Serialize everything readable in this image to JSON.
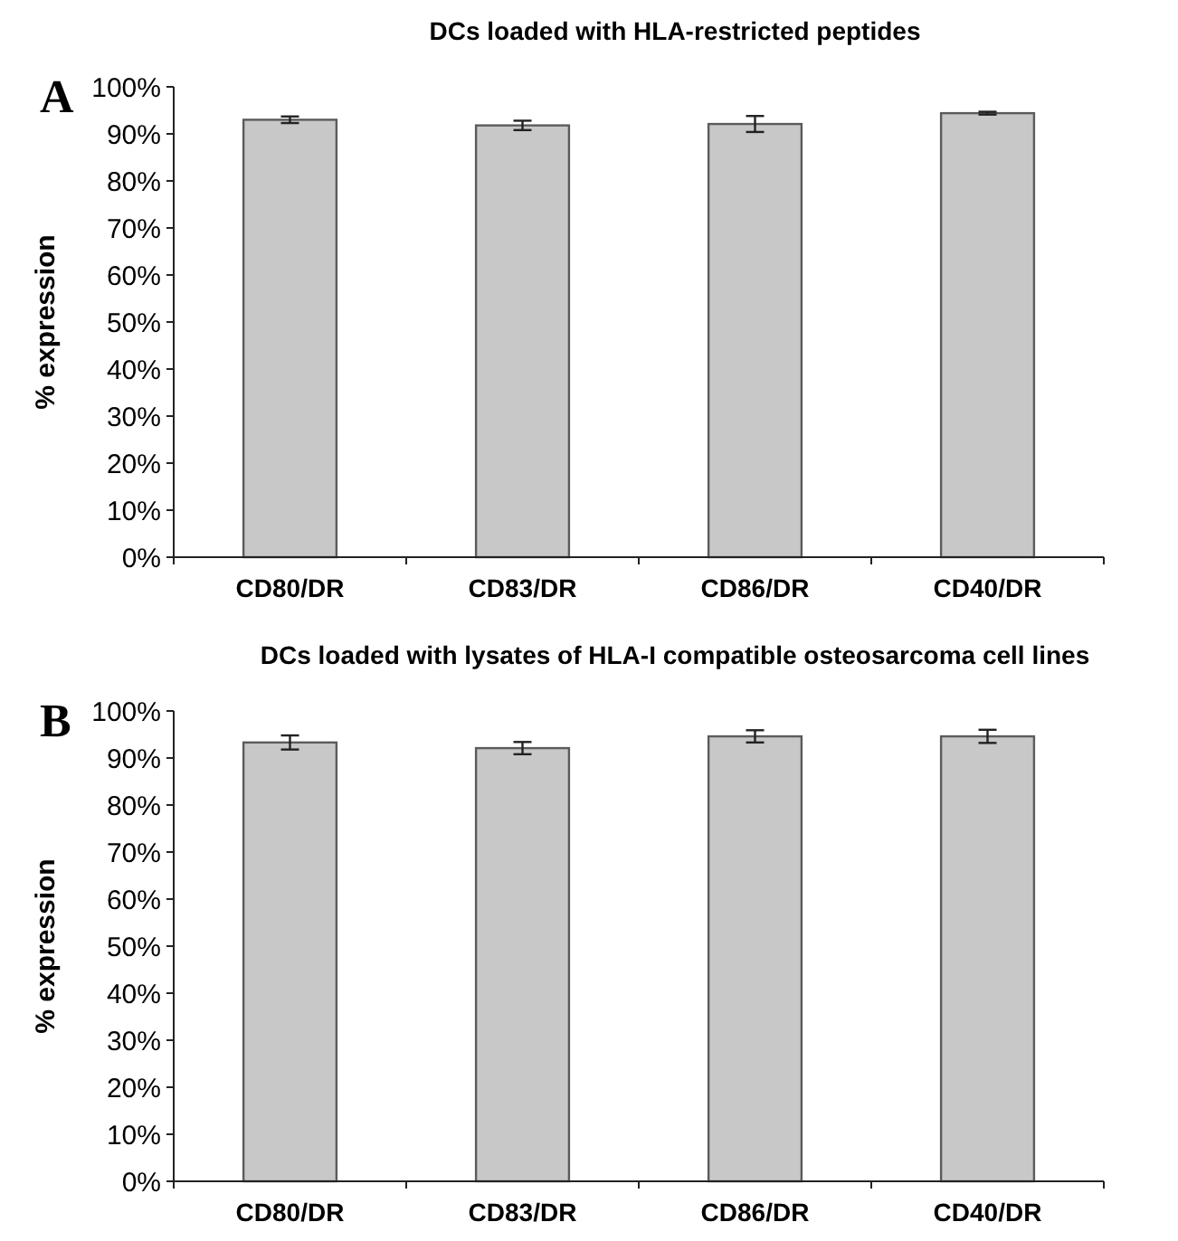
{
  "chart_data": [
    {
      "type": "bar",
      "title": "DCs loaded with HLA-restricted peptides",
      "ylabel": "% expression",
      "annotations": [
        "A"
      ],
      "categories": [
        "CD80/DR",
        "CD83/DR",
        "CD86/DR",
        "CD40/DR"
      ],
      "values": [
        93,
        91.8,
        92.1,
        94.4
      ],
      "errors": [
        0.7,
        1.0,
        1.7,
        0.3
      ],
      "color": "#c8c8c8",
      "ylim": [
        0,
        100
      ],
      "yticks": [
        {
          "value": 0,
          "label": "0%"
        },
        {
          "value": 10,
          "label": "10%"
        },
        {
          "value": 20,
          "label": "20%"
        },
        {
          "value": 30,
          "label": "30%"
        },
        {
          "value": 40,
          "label": "40%"
        },
        {
          "value": 50,
          "label": "50%"
        },
        {
          "value": 60,
          "label": "60%"
        },
        {
          "value": 70,
          "label": "70%"
        },
        {
          "value": 80,
          "label": "80%"
        },
        {
          "value": 90,
          "label": "90%"
        },
        {
          "value": 100,
          "label": "100%"
        }
      ]
    },
    {
      "type": "bar",
      "title": "DCs loaded with lysates of HLA-I compatible osteosarcoma cell lines",
      "ylabel": "% expression",
      "annotations": [
        "B"
      ],
      "categories": [
        "CD80/DR",
        "CD83/DR",
        "CD86/DR",
        "CD40/DR"
      ],
      "values": [
        93.3,
        92.1,
        94.6,
        94.6
      ],
      "errors": [
        1.5,
        1.3,
        1.3,
        1.4
      ],
      "color": "#c8c8c8",
      "ylim": [
        0,
        100
      ],
      "yticks": [
        {
          "value": 0,
          "label": "0%"
        },
        {
          "value": 10,
          "label": "10%"
        },
        {
          "value": 20,
          "label": "20%"
        },
        {
          "value": 30,
          "label": "30%"
        },
        {
          "value": 40,
          "label": "40%"
        },
        {
          "value": 50,
          "label": "50%"
        },
        {
          "value": 60,
          "label": "60%"
        },
        {
          "value": 70,
          "label": "70%"
        },
        {
          "value": 80,
          "label": "80%"
        },
        {
          "value": 90,
          "label": "90%"
        },
        {
          "value": 100,
          "label": "100%"
        }
      ]
    }
  ]
}
